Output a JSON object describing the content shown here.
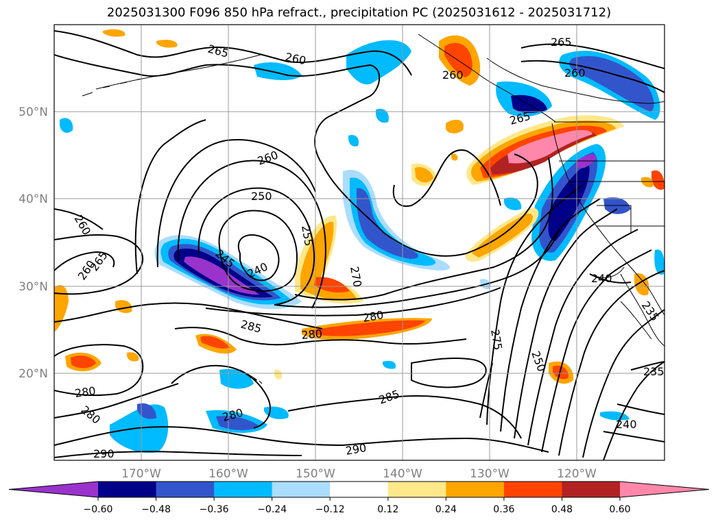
{
  "title": "2025031300 F096 850 hPa refract., precipitation PC (2025031612 - 2025031712)",
  "map": {
    "projection": "equirectangular",
    "lon_range": [
      -180,
      -110
    ],
    "lat_range": [
      10,
      60
    ],
    "grid_color": "#999999",
    "lon_labels": [
      "170°W",
      "160°W",
      "150°W",
      "140°W",
      "130°W",
      "120°W"
    ],
    "lat_labels": [
      "50°N",
      "40°N",
      "30°N",
      "20°N"
    ],
    "contour_labels": [
      "265",
      "260",
      "260",
      "265",
      "260",
      "260",
      "250",
      "255",
      "245",
      "240",
      "270",
      "265",
      "260",
      "280",
      "285",
      "280",
      "275",
      "250",
      "280",
      "280",
      "280",
      "285",
      "290",
      "290",
      "240",
      "240",
      "235",
      "235",
      "265",
      "260"
    ]
  },
  "colorbar": {
    "ticks": [
      "−0.60",
      "−0.48",
      "−0.36",
      "−0.24",
      "−0.12",
      "0.12",
      "0.24",
      "0.36",
      "0.48",
      "0.60"
    ],
    "colors": [
      "#9933cc",
      "#000088",
      "#3355cc",
      "#00bbff",
      "#aaddff",
      "#ffffff",
      "#ffe88a",
      "#ffa500",
      "#ff4400",
      "#b22222",
      "#ff88aa"
    ]
  },
  "chart_data": {
    "type": "map",
    "fields": [
      {
        "name": "850 hPa refract.",
        "render": "contours",
        "levels_labeled": [
          235,
          240,
          245,
          250,
          255,
          260,
          265,
          270,
          275,
          280,
          285,
          290
        ]
      },
      {
        "name": "precipitation PC",
        "render": "filled",
        "bounds": [
          -0.6,
          -0.48,
          -0.36,
          -0.24,
          -0.12,
          0.12,
          0.24,
          0.36,
          0.48,
          0.6
        ]
      }
    ]
  }
}
